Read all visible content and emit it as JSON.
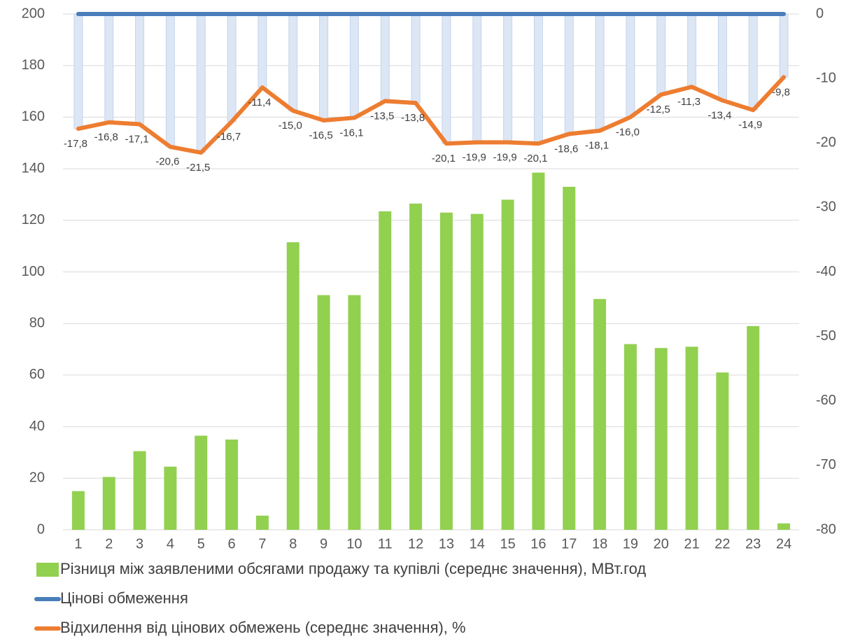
{
  "chart_data": {
    "type": "bar",
    "categories": [
      "1",
      "2",
      "3",
      "4",
      "5",
      "6",
      "7",
      "8",
      "9",
      "10",
      "11",
      "12",
      "13",
      "14",
      "15",
      "16",
      "17",
      "18",
      "19",
      "20",
      "21",
      "22",
      "23",
      "24"
    ],
    "ylim": [
      0,
      200
    ],
    "yticks": [
      0,
      20,
      40,
      60,
      80,
      100,
      120,
      140,
      160,
      180,
      200
    ],
    "y2lim": [
      -80,
      0
    ],
    "y2ticks": [
      -80,
      -70,
      -60,
      -50,
      -40,
      -30,
      -20,
      -10,
      0
    ],
    "grid": true,
    "legend": "bottom",
    "series": [
      {
        "name": "Різниця між заявленими обсягами продажу та купівлі (середнє значення), МВт.год",
        "type": "bar",
        "color": "#92d050",
        "values": [
          15,
          20.5,
          30.5,
          24.5,
          36.5,
          35,
          5.5,
          111.5,
          91,
          91,
          123.5,
          126.5,
          123,
          122.5,
          128,
          138.5,
          133,
          89.5,
          72,
          70.5,
          71,
          61,
          79,
          2.5
        ]
      },
      {
        "name": "Цінові обмеження",
        "type": "line",
        "axis": "y2",
        "color": "#4a7ebb",
        "values": [
          0,
          0,
          0,
          0,
          0,
          0,
          0,
          0,
          0,
          0,
          0,
          0,
          0,
          0,
          0,
          0,
          0,
          0,
          0,
          0,
          0,
          0,
          0,
          0
        ]
      },
      {
        "name": "Відхилення від цінових обмежень (середнє значення), %",
        "type": "line",
        "axis": "y2",
        "color": "#ed7d31",
        "values": [
          -17.8,
          -16.8,
          -17.1,
          -20.6,
          -21.5,
          -16.7,
          -11.4,
          -15.0,
          -16.5,
          -16.1,
          -13.5,
          -13.8,
          -20.1,
          -19.9,
          -19.9,
          -20.1,
          -18.6,
          -18.1,
          -16.0,
          -12.5,
          -11.3,
          -13.4,
          -14.9,
          -9.8
        ],
        "value_labels": [
          "-17,8",
          "-16,8",
          "-17,1",
          "-20,6",
          "-21,5",
          "-16,7",
          "-11,4",
          "-15,0",
          "-16,5",
          "-16,1",
          "-13,5",
          "-13,8",
          "-20,1",
          "-19,9",
          "-19,9",
          "-20,1",
          "-18,6",
          "-18,1",
          "-16,0",
          "-12,5",
          "-11,3",
          "-13,4",
          "-14,9",
          "-9,8"
        ]
      }
    ]
  }
}
